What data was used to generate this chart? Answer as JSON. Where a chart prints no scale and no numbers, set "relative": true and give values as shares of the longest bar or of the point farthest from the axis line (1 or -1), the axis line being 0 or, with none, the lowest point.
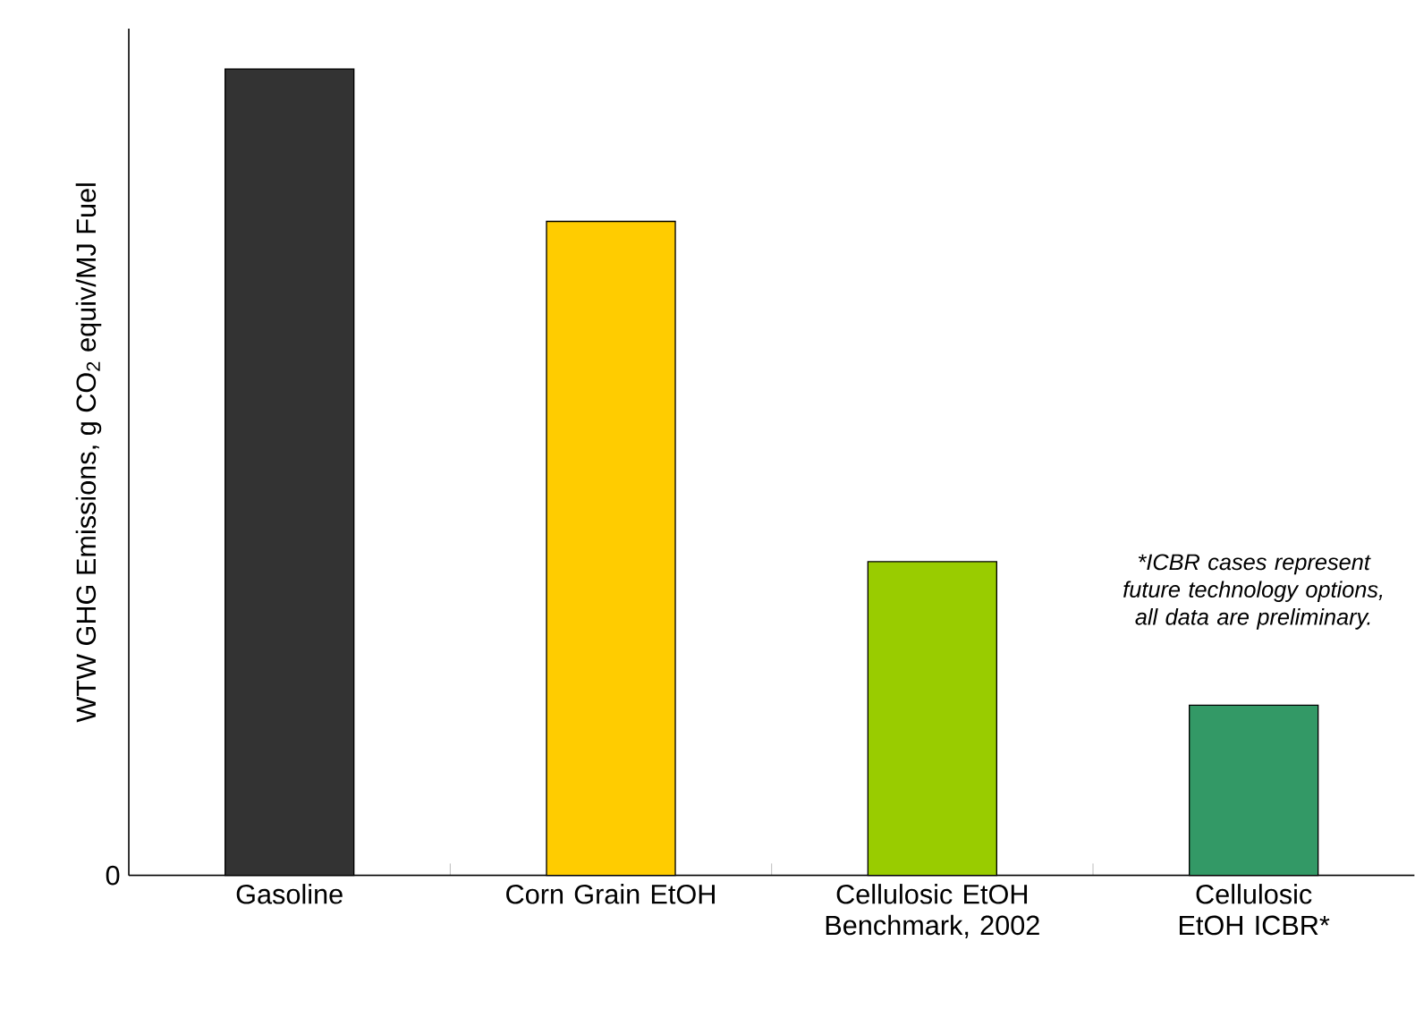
{
  "chart_data": {
    "type": "bar",
    "relative": true,
    "ylabel": "WTW GHG Emissions, g CO$_{2}$ equiv/MJ Fuel",
    "categories": [
      "Gasoline",
      "Corn Grain EtOH",
      "Cellulosic EtOH Benchmark, 2002",
      "Cellulosic EtOH ICBR*"
    ],
    "values": [
      1,
      0.811,
      0.389,
      0.211
    ],
    "colors": [
      "#333333",
      "#ffcc00",
      "#99cc00",
      "#339966"
    ],
    "annotations": [
      "0",
      "*ICBR cases represent future technology options, all data are preliminary."
    ],
    "tick_labels": "x"
  }
}
